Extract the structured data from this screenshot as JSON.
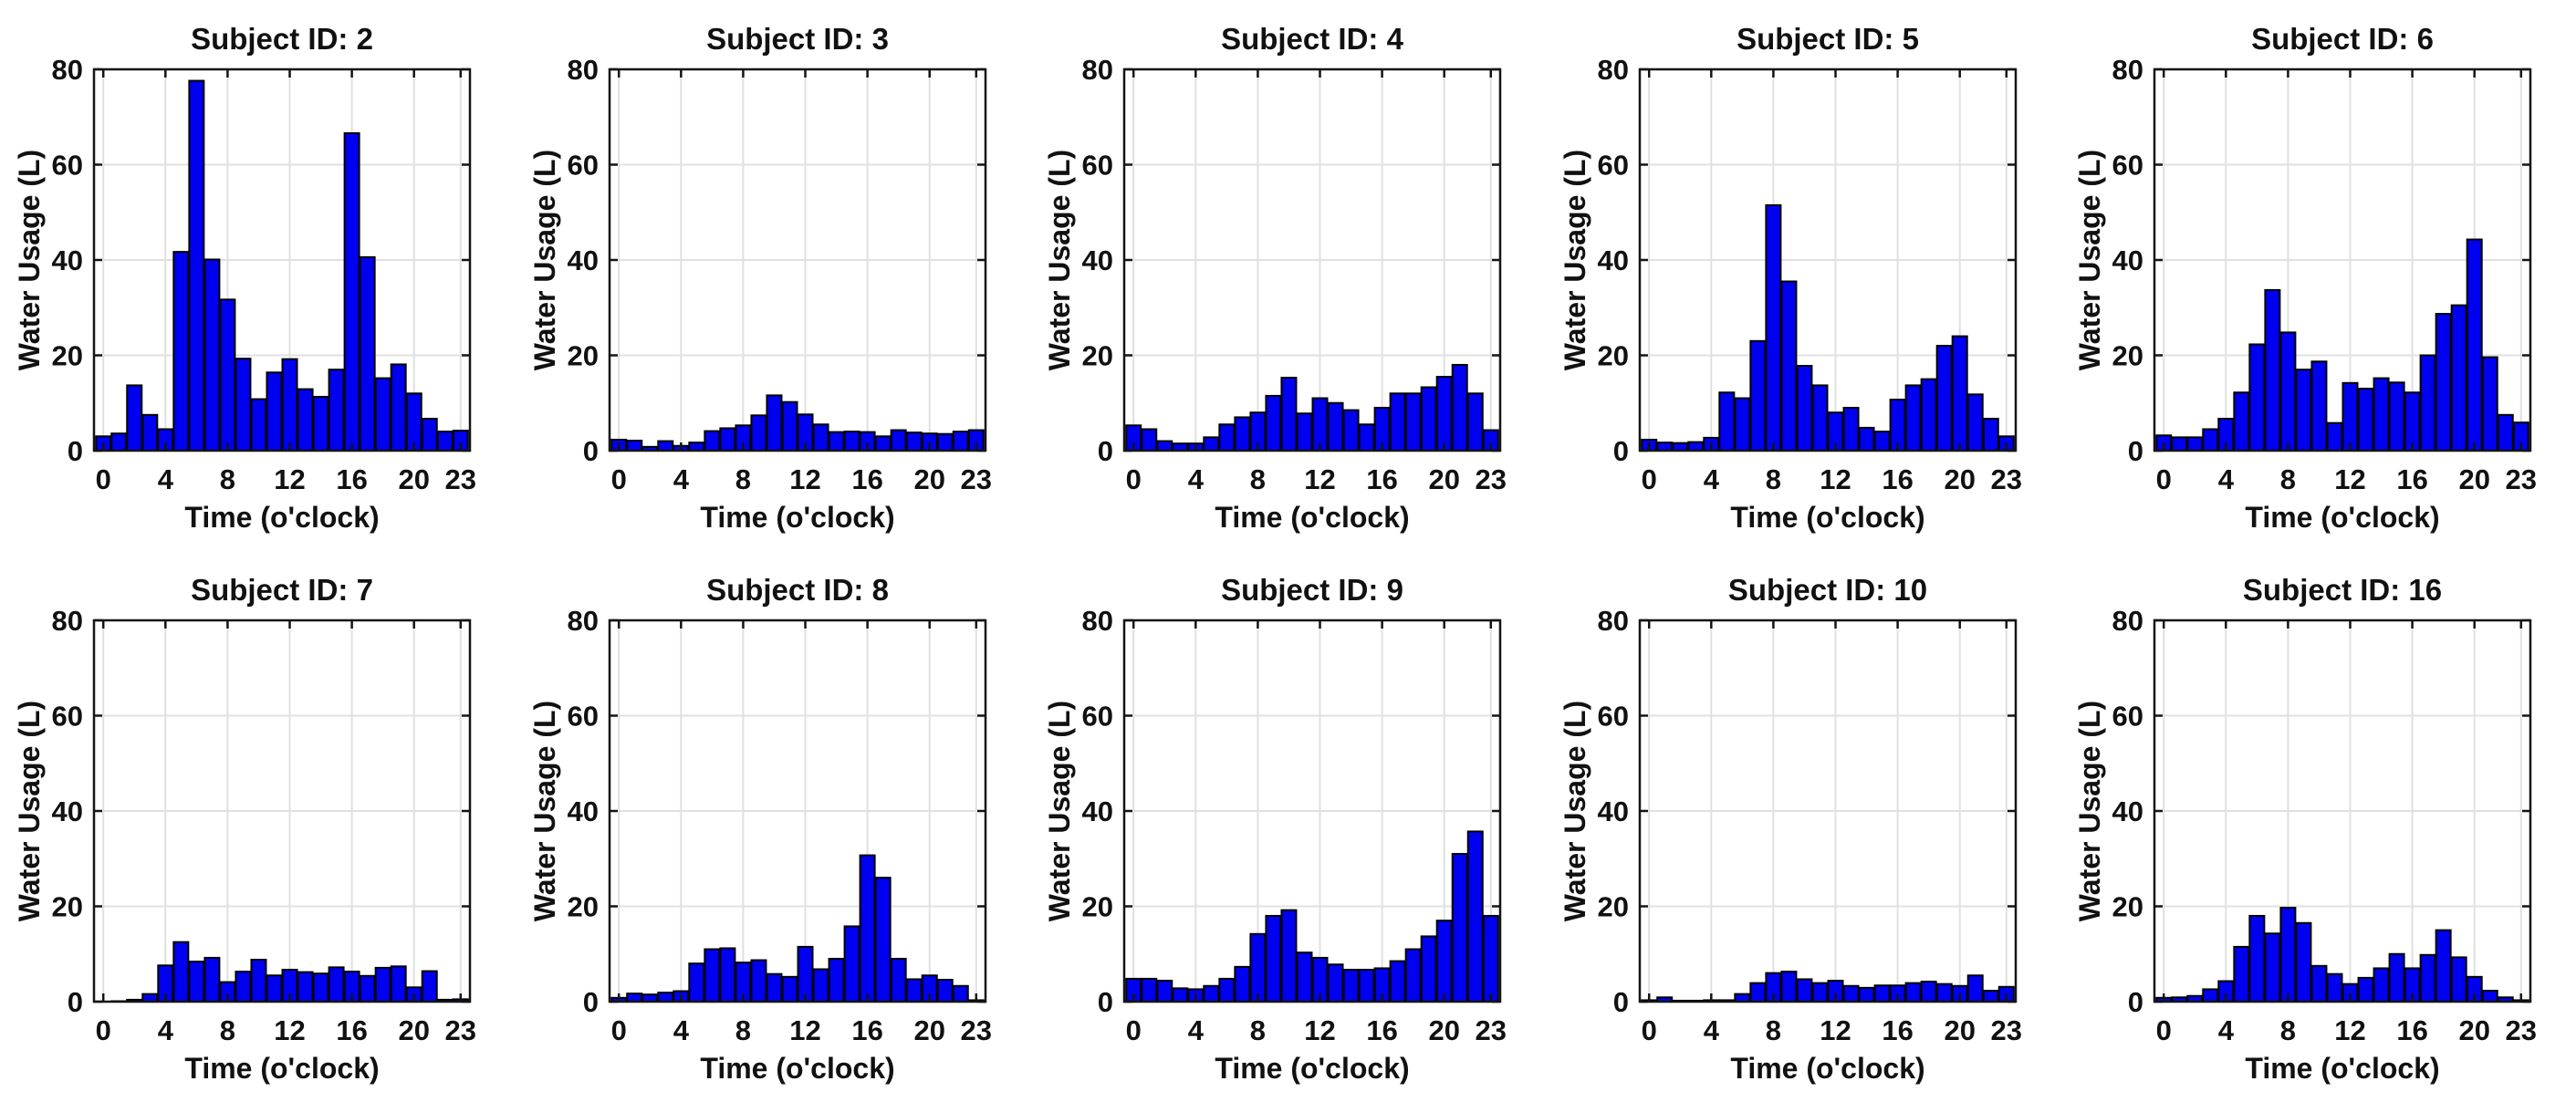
{
  "figure": {
    "background": "#ffffff",
    "bar_fill": "#0000f0",
    "bar_edge": "#000000",
    "grid_color": "#e0e0e0",
    "axis_color": "#141414",
    "rows": 2,
    "cols": 5
  },
  "chart_data": [
    {
      "type": "bar",
      "subject_id": 2,
      "title": "Subject ID: 2",
      "xlabel": "Time (o'clock)",
      "ylabel": "Water Usage (L)",
      "ylim": [
        0,
        80
      ],
      "yticks": [
        0,
        20,
        40,
        60,
        80
      ],
      "xticks": [
        0,
        4,
        8,
        12,
        16,
        20,
        23
      ],
      "grid": true,
      "x": [
        0,
        1,
        2,
        3,
        4,
        5,
        6,
        7,
        8,
        9,
        10,
        11,
        12,
        13,
        14,
        15,
        16,
        17,
        18,
        19,
        20,
        21,
        22,
        23
      ],
      "values": [
        3.0,
        3.6,
        13.7,
        7.5,
        4.5,
        41.7,
        77.6,
        40.1,
        31.7,
        19.3,
        10.8,
        16.4,
        19.2,
        12.9,
        11.3,
        17.0,
        66.6,
        40.6,
        15.2,
        18.1,
        12.0,
        6.7,
        4.0,
        4.2
      ]
    },
    {
      "type": "bar",
      "subject_id": 3,
      "title": "Subject ID: 3",
      "xlabel": "Time (o'clock)",
      "ylabel": "Water Usage (L)",
      "ylim": [
        0,
        80
      ],
      "yticks": [
        0,
        20,
        40,
        60,
        80
      ],
      "xticks": [
        0,
        4,
        8,
        12,
        16,
        20,
        23
      ],
      "grid": true,
      "x": [
        0,
        1,
        2,
        3,
        4,
        5,
        6,
        7,
        8,
        9,
        10,
        11,
        12,
        13,
        14,
        15,
        16,
        17,
        18,
        19,
        20,
        21,
        22,
        23
      ],
      "values": [
        2.3,
        2.1,
        0.8,
        2.0,
        1.0,
        1.7,
        4.1,
        4.7,
        5.3,
        7.4,
        11.6,
        10.2,
        7.6,
        5.5,
        3.9,
        4.0,
        3.9,
        3.0,
        4.3,
        3.8,
        3.6,
        3.5,
        4.0,
        4.3
      ]
    },
    {
      "type": "bar",
      "subject_id": 4,
      "title": "Subject ID: 4",
      "xlabel": "Time (o'clock)",
      "ylabel": "Water Usage (L)",
      "ylim": [
        0,
        80
      ],
      "yticks": [
        0,
        20,
        40,
        60,
        80
      ],
      "xticks": [
        0,
        4,
        8,
        12,
        16,
        20,
        23
      ],
      "grid": true,
      "x": [
        0,
        1,
        2,
        3,
        4,
        5,
        6,
        7,
        8,
        9,
        10,
        11,
        12,
        13,
        14,
        15,
        16,
        17,
        18,
        19,
        20,
        21,
        22,
        23
      ],
      "values": [
        5.3,
        4.5,
        2.0,
        1.5,
        1.5,
        2.8,
        5.5,
        7.0,
        8.0,
        11.5,
        15.3,
        7.8,
        11.0,
        10.0,
        8.5,
        5.5,
        9.0,
        12.0,
        12.0,
        13.3,
        15.5,
        18.0,
        12.0,
        4.3
      ]
    },
    {
      "type": "bar",
      "subject_id": 5,
      "title": "Subject ID: 5",
      "xlabel": "Time (o'clock)",
      "ylabel": "Water Usage (L)",
      "ylim": [
        0,
        80
      ],
      "yticks": [
        0,
        20,
        40,
        60,
        80
      ],
      "xticks": [
        0,
        4,
        8,
        12,
        16,
        20,
        23
      ],
      "grid": true,
      "x": [
        0,
        1,
        2,
        3,
        4,
        5,
        6,
        7,
        8,
        9,
        10,
        11,
        12,
        13,
        14,
        15,
        16,
        17,
        18,
        19,
        20,
        21,
        22,
        23
      ],
      "values": [
        2.3,
        1.7,
        1.6,
        1.8,
        2.7,
        12.2,
        11.0,
        23.0,
        51.5,
        35.5,
        17.8,
        13.7,
        8.0,
        9.0,
        4.8,
        4.0,
        10.7,
        13.7,
        15.0,
        22.0,
        24.0,
        11.8,
        6.7,
        3.0
      ]
    },
    {
      "type": "bar",
      "subject_id": 6,
      "title": "Subject ID: 6",
      "xlabel": "Time (o'clock)",
      "ylabel": "Water Usage (L)",
      "ylim": [
        0,
        80
      ],
      "yticks": [
        0,
        20,
        40,
        60,
        80
      ],
      "xticks": [
        0,
        4,
        8,
        12,
        16,
        20,
        23
      ],
      "grid": true,
      "x": [
        0,
        1,
        2,
        3,
        4,
        5,
        6,
        7,
        8,
        9,
        10,
        11,
        12,
        13,
        14,
        15,
        16,
        17,
        18,
        19,
        20,
        21,
        22,
        23
      ],
      "values": [
        3.2,
        2.8,
        2.8,
        4.5,
        6.7,
        12.2,
        22.3,
        33.7,
        24.8,
        17.0,
        18.7,
        5.8,
        14.2,
        13.0,
        15.2,
        14.3,
        12.2,
        20.0,
        28.7,
        30.5,
        44.3,
        19.6,
        7.5,
        5.9
      ]
    },
    {
      "type": "bar",
      "subject_id": 7,
      "title": "Subject ID: 7",
      "xlabel": "Time (o'clock)",
      "ylabel": "Water Usage (L)",
      "ylim": [
        0,
        80
      ],
      "yticks": [
        0,
        20,
        40,
        60,
        80
      ],
      "xticks": [
        0,
        4,
        8,
        12,
        16,
        20,
        23
      ],
      "grid": true,
      "x": [
        0,
        1,
        2,
        3,
        4,
        5,
        6,
        7,
        8,
        9,
        10,
        11,
        12,
        13,
        14,
        15,
        16,
        17,
        18,
        19,
        20,
        21,
        22,
        23
      ],
      "values": [
        0.0,
        0.1,
        0.4,
        1.6,
        7.6,
        12.5,
        8.4,
        9.2,
        4.1,
        6.3,
        8.8,
        5.5,
        6.7,
        6.2,
        5.9,
        7.2,
        6.3,
        5.4,
        7.1,
        7.4,
        3.0,
        6.4,
        0.4,
        0.5
      ]
    },
    {
      "type": "bar",
      "subject_id": 8,
      "title": "Subject ID: 8",
      "xlabel": "Time (o'clock)",
      "ylabel": "Water Usage (L)",
      "ylim": [
        0,
        80
      ],
      "yticks": [
        0,
        20,
        40,
        60,
        80
      ],
      "xticks": [
        0,
        4,
        8,
        12,
        16,
        20,
        23
      ],
      "grid": true,
      "x": [
        0,
        1,
        2,
        3,
        4,
        5,
        6,
        7,
        8,
        9,
        10,
        11,
        12,
        13,
        14,
        15,
        16,
        17,
        18,
        19,
        20,
        21,
        22,
        23
      ],
      "values": [
        0.8,
        1.7,
        1.5,
        1.9,
        2.2,
        8.0,
        11.0,
        11.2,
        8.2,
        8.7,
        5.8,
        5.2,
        11.5,
        6.8,
        9.0,
        15.8,
        30.7,
        26.0,
        9.0,
        4.7,
        5.5,
        4.6,
        3.3,
        0.3
      ]
    },
    {
      "type": "bar",
      "subject_id": 9,
      "title": "Subject ID: 9",
      "xlabel": "Time (o'clock)",
      "ylabel": "Water Usage (L)",
      "ylim": [
        0,
        80
      ],
      "yticks": [
        0,
        20,
        40,
        60,
        80
      ],
      "xticks": [
        0,
        4,
        8,
        12,
        16,
        20,
        23
      ],
      "grid": true,
      "x": [
        0,
        1,
        2,
        3,
        4,
        5,
        6,
        7,
        8,
        9,
        10,
        11,
        12,
        13,
        14,
        15,
        16,
        17,
        18,
        19,
        20,
        21,
        22,
        23
      ],
      "values": [
        4.8,
        4.8,
        4.4,
        2.8,
        2.6,
        3.3,
        4.8,
        7.3,
        14.2,
        18.0,
        19.2,
        10.3,
        9.2,
        7.8,
        6.7,
        6.7,
        7.0,
        8.5,
        11.0,
        13.7,
        17.0,
        31.0,
        35.7,
        18.0
      ]
    },
    {
      "type": "bar",
      "subject_id": 10,
      "title": "Subject ID: 10",
      "xlabel": "Time (o'clock)",
      "ylabel": "Water Usage (L)",
      "ylim": [
        0,
        80
      ],
      "yticks": [
        0,
        20,
        40,
        60,
        80
      ],
      "xticks": [
        0,
        4,
        8,
        12,
        16,
        20,
        23
      ],
      "grid": true,
      "x": [
        0,
        1,
        2,
        3,
        4,
        5,
        6,
        7,
        8,
        9,
        10,
        11,
        12,
        13,
        14,
        15,
        16,
        17,
        18,
        19,
        20,
        21,
        22,
        23
      ],
      "values": [
        0.3,
        0.9,
        0.2,
        0.2,
        0.3,
        0.3,
        1.6,
        3.9,
        6.0,
        6.3,
        4.7,
        3.9,
        4.4,
        3.3,
        2.9,
        3.4,
        3.4,
        3.9,
        4.2,
        3.7,
        3.3,
        5.5,
        2.3,
        3.1
      ]
    },
    {
      "type": "bar",
      "subject_id": 16,
      "title": "Subject ID: 16",
      "xlabel": "Time (o'clock)",
      "ylabel": "Water Usage (L)",
      "ylim": [
        0,
        80
      ],
      "yticks": [
        0,
        20,
        40,
        60,
        80
      ],
      "xticks": [
        0,
        4,
        8,
        12,
        16,
        20,
        23
      ],
      "grid": true,
      "x": [
        0,
        1,
        2,
        3,
        4,
        5,
        6,
        7,
        8,
        9,
        10,
        11,
        12,
        13,
        14,
        15,
        16,
        17,
        18,
        19,
        20,
        21,
        22,
        23
      ],
      "values": [
        0.8,
        0.9,
        1.2,
        2.6,
        4.3,
        11.5,
        18.0,
        14.3,
        19.7,
        16.5,
        7.5,
        5.8,
        3.7,
        5.0,
        7.0,
        10.0,
        7.0,
        9.8,
        15.0,
        9.3,
        5.2,
        2.3,
        0.9,
        0.3
      ]
    }
  ]
}
